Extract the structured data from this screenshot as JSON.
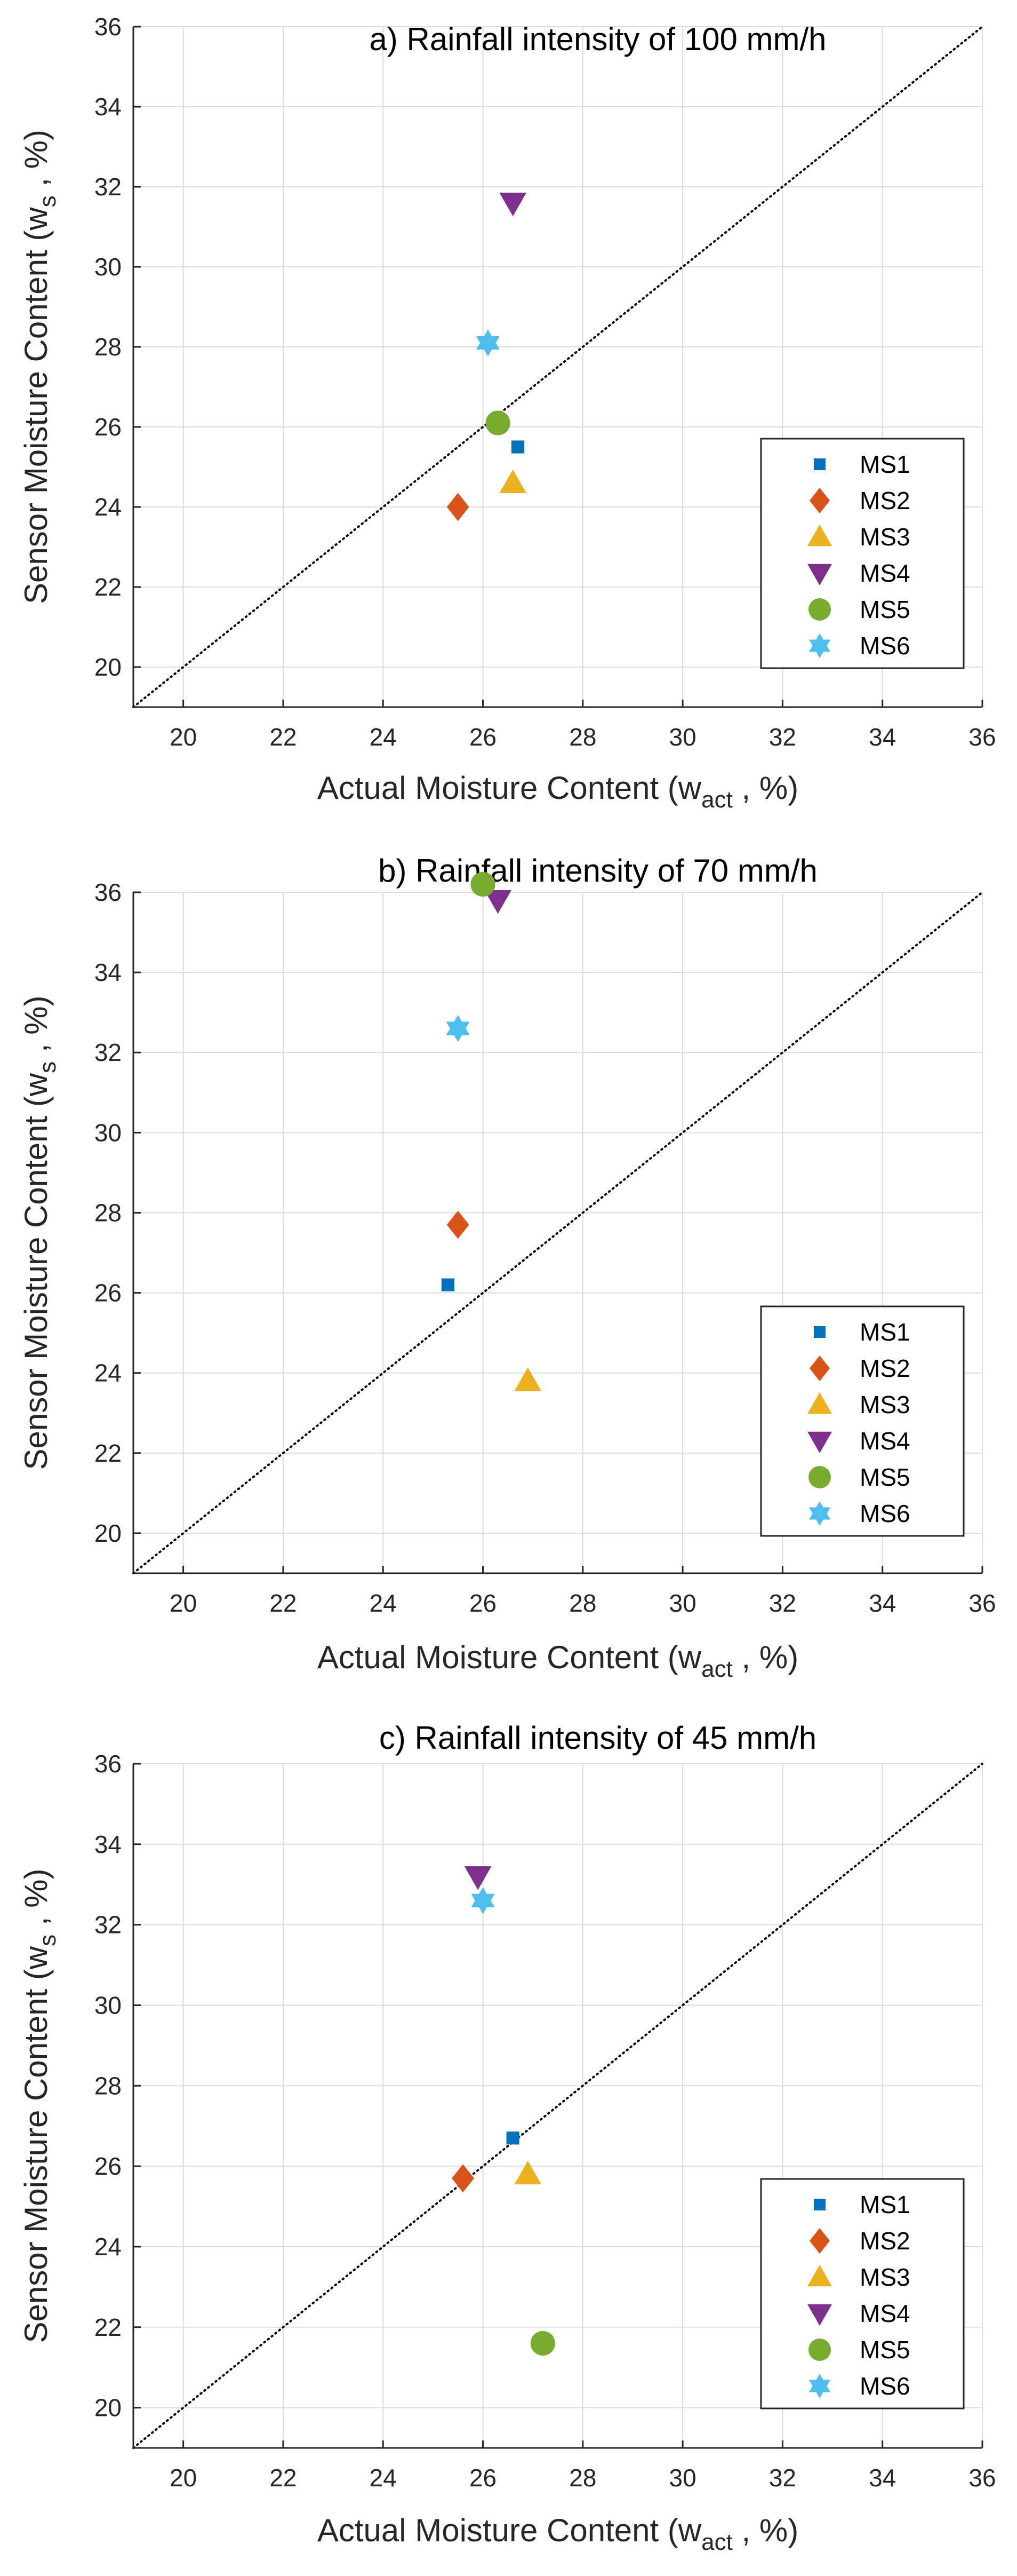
{
  "chart_data": [
    {
      "type": "scatter",
      "title": "a) Rainfall intensity of 100 mm/h",
      "xlabel": {
        "main": "Actual Moisture Content (w",
        "sub": "act",
        "tail": " , %)"
      },
      "ylabel": {
        "main": "Sensor Moisture Content (w",
        "sub": "s",
        "tail": " , %)"
      },
      "xlim": [
        19,
        36
      ],
      "ylim": [
        19,
        36
      ],
      "xticks": [
        20,
        22,
        24,
        26,
        28,
        30,
        32,
        34,
        36
      ],
      "yticks": [
        20,
        22,
        24,
        26,
        28,
        30,
        32,
        34,
        36
      ],
      "grid": true,
      "reference_line": {
        "style": "dotted",
        "from": [
          19,
          19
        ],
        "to": [
          36,
          36
        ]
      },
      "legend_position": "bottom-right",
      "series": [
        {
          "name": "MS1",
          "marker": "square",
          "color": "#0072BD",
          "x": 26.7,
          "y": 25.5
        },
        {
          "name": "MS2",
          "marker": "diamond",
          "color": "#D95319",
          "x": 25.5,
          "y": 24.0
        },
        {
          "name": "MS3",
          "marker": "triangle-up",
          "color": "#EDB120",
          "x": 26.6,
          "y": 24.6
        },
        {
          "name": "MS4",
          "marker": "triangle-down",
          "color": "#7E2F8E",
          "x": 26.6,
          "y": 31.6
        },
        {
          "name": "MS5",
          "marker": "circle",
          "color": "#77AC30",
          "x": 26.3,
          "y": 26.1
        },
        {
          "name": "MS6",
          "marker": "hexagram",
          "color": "#4DBEEE",
          "x": 26.1,
          "y": 28.1
        }
      ]
    },
    {
      "type": "scatter",
      "title": "b) Rainfall intensity of 70 mm/h",
      "xlabel": {
        "main": "Actual Moisture Content (w",
        "sub": "act",
        "tail": " , %)"
      },
      "ylabel": {
        "main": "Sensor Moisture Content (w",
        "sub": "s",
        "tail": " , %)"
      },
      "xlim": [
        19,
        36
      ],
      "ylim": [
        19,
        36
      ],
      "xticks": [
        20,
        22,
        24,
        26,
        28,
        30,
        32,
        34,
        36
      ],
      "yticks": [
        20,
        22,
        24,
        26,
        28,
        30,
        32,
        34,
        36
      ],
      "grid": true,
      "reference_line": {
        "style": "dotted",
        "from": [
          19,
          19
        ],
        "to": [
          36,
          36
        ]
      },
      "legend_position": "bottom-right",
      "series": [
        {
          "name": "MS1",
          "marker": "square",
          "color": "#0072BD",
          "x": 25.3,
          "y": 26.2
        },
        {
          "name": "MS2",
          "marker": "diamond",
          "color": "#D95319",
          "x": 25.5,
          "y": 27.7
        },
        {
          "name": "MS3",
          "marker": "triangle-up",
          "color": "#EDB120",
          "x": 26.9,
          "y": 23.8
        },
        {
          "name": "MS4",
          "marker": "triangle-down",
          "color": "#7E2F8E",
          "x": 26.3,
          "y": 35.8
        },
        {
          "name": "MS5",
          "marker": "circle",
          "color": "#77AC30",
          "x": 26.0,
          "y": 36.2
        },
        {
          "name": "MS6",
          "marker": "hexagram",
          "color": "#4DBEEE",
          "x": 25.5,
          "y": 32.6
        }
      ]
    },
    {
      "type": "scatter",
      "title": "c) Rainfall intensity of 45 mm/h",
      "xlabel": {
        "main": "Actual Moisture Content (w",
        "sub": "act",
        "tail": " , %)"
      },
      "ylabel": {
        "main": "Sensor Moisture Content (w",
        "sub": "s",
        "tail": " , %)"
      },
      "xlim": [
        19,
        36
      ],
      "ylim": [
        19,
        36
      ],
      "xticks": [
        20,
        22,
        24,
        26,
        28,
        30,
        32,
        34,
        36
      ],
      "yticks": [
        20,
        22,
        24,
        26,
        28,
        30,
        32,
        34,
        36
      ],
      "grid": true,
      "reference_line": {
        "style": "dotted",
        "from": [
          19,
          19
        ],
        "to": [
          36,
          36
        ]
      },
      "legend_position": "bottom-right",
      "series": [
        {
          "name": "MS1",
          "marker": "square",
          "color": "#0072BD",
          "x": 26.6,
          "y": 26.7
        },
        {
          "name": "MS2",
          "marker": "diamond",
          "color": "#D95319",
          "x": 25.6,
          "y": 25.7
        },
        {
          "name": "MS3",
          "marker": "triangle-up",
          "color": "#EDB120",
          "x": 26.9,
          "y": 25.8
        },
        {
          "name": "MS4",
          "marker": "triangle-down",
          "color": "#7E2F8E",
          "x": 25.9,
          "y": 33.2
        },
        {
          "name": "MS5",
          "marker": "circle",
          "color": "#77AC30",
          "x": 27.2,
          "y": 21.6
        },
        {
          "name": "MS6",
          "marker": "hexagram",
          "color": "#4DBEEE",
          "x": 26.0,
          "y": 32.6
        }
      ]
    }
  ]
}
